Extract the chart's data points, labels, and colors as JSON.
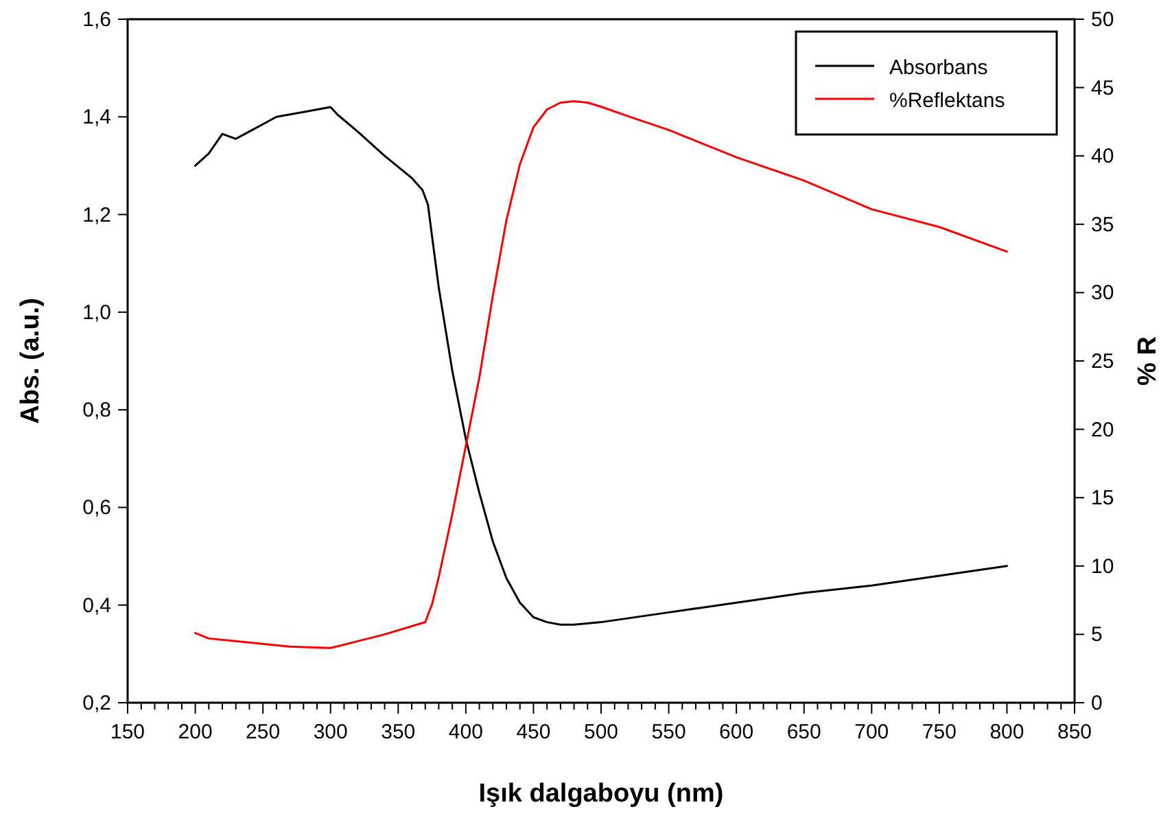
{
  "chart_data": {
    "type": "line",
    "xlabel": "Işık dalgaboyu (nm)",
    "ylabel": "Abs. (a.u.)",
    "y2label": "% R",
    "xlim": [
      150,
      850
    ],
    "xticks": [
      150,
      {
        "value": 160,
        "label": null
      },
      {
        "value": 170,
        "label": null
      },
      {
        "value": 180,
        "label": null
      },
      {
        "value": 190,
        "label": null
      },
      200,
      {
        "value": 210,
        "label": null
      },
      {
        "value": 220,
        "label": null
      },
      {
        "value": 230,
        "label": null
      },
      {
        "value": 240,
        "label": null
      },
      250,
      {
        "value": 260,
        "label": null
      },
      {
        "value": 270,
        "label": null
      },
      {
        "value": 280,
        "label": null
      },
      {
        "value": 290,
        "label": null
      },
      300,
      {
        "value": 310,
        "label": null
      },
      {
        "value": 320,
        "label": null
      },
      {
        "value": 330,
        "label": null
      },
      {
        "value": 340,
        "label": null
      },
      350,
      {
        "value": 360,
        "label": null
      },
      {
        "value": 370,
        "label": null
      },
      {
        "value": 380,
        "label": null
      },
      {
        "value": 390,
        "label": null
      },
      400,
      {
        "value": 410,
        "label": null
      },
      {
        "value": 420,
        "label": null
      },
      {
        "value": 430,
        "label": null
      },
      {
        "value": 440,
        "label": null
      },
      450,
      {
        "value": 460,
        "label": null
      },
      {
        "value": 470,
        "label": null
      },
      {
        "value": 480,
        "label": null
      },
      {
        "value": 490,
        "label": null
      },
      500,
      {
        "value": 510,
        "label": null
      },
      {
        "value": 520,
        "label": null
      },
      {
        "value": 530,
        "label": null
      },
      {
        "value": 540,
        "label": null
      },
      550,
      {
        "value": 560,
        "label": null
      },
      {
        "value": 570,
        "label": null
      },
      {
        "value": 580,
        "label": null
      },
      {
        "value": 590,
        "label": null
      },
      600,
      {
        "value": 610,
        "label": null
      },
      {
        "value": 620,
        "label": null
      },
      {
        "value": 630,
        "label": null
      },
      {
        "value": 640,
        "label": null
      },
      650,
      {
        "value": 660,
        "label": null
      },
      {
        "value": 670,
        "label": null
      },
      {
        "value": 680,
        "label": null
      },
      {
        "value": 690,
        "label": null
      },
      700,
      {
        "value": 710,
        "label": null
      },
      {
        "value": 720,
        "label": null
      },
      {
        "value": 730,
        "label": null
      },
      {
        "value": 740,
        "label": null
      },
      750,
      {
        "value": 760,
        "label": null
      },
      {
        "value": 770,
        "label": null
      },
      {
        "value": 780,
        "label": null
      },
      {
        "value": 790,
        "label": null
      },
      800,
      {
        "value": 810,
        "label": null
      },
      {
        "value": 820,
        "label": null
      },
      {
        "value": 830,
        "label": null
      },
      {
        "value": 840,
        "label": null
      },
      850
    ],
    "ylim": [
      0.2,
      1.6
    ],
    "yticks": [
      {
        "value": 0.2,
        "label": "0,2"
      },
      {
        "value": 0.4,
        "label": "0,4"
      },
      {
        "value": 0.6,
        "label": "0,6"
      },
      {
        "value": 0.8,
        "label": "0,8"
      },
      {
        "value": 1.0,
        "label": "1,0"
      },
      {
        "value": 1.2,
        "label": "1,2"
      },
      {
        "value": 1.4,
        "label": "1,4"
      },
      {
        "value": 1.6,
        "label": "1,6"
      }
    ],
    "y2lim": [
      0,
      50
    ],
    "y2ticks": [
      0,
      5,
      10,
      15,
      20,
      25,
      30,
      35,
      40,
      45,
      50
    ],
    "grid": false,
    "legend": "top right",
    "marker": "none",
    "line_style": "solid",
    "series": [
      {
        "name": "Absorbans",
        "color": "#000000",
        "x": [
          200,
          210,
          220,
          230,
          240,
          250,
          260,
          280,
          300,
          305,
          320,
          340,
          360,
          368,
          372,
          380,
          390,
          400,
          410,
          420,
          430,
          440,
          450,
          460,
          470,
          480,
          500,
          550,
          600,
          650,
          700,
          750,
          800
        ],
        "values": [
          1.3,
          1.325,
          1.365,
          1.355,
          1.37,
          1.385,
          1.4,
          1.41,
          1.42,
          1.405,
          1.37,
          1.32,
          1.275,
          1.25,
          1.22,
          1.05,
          0.88,
          0.74,
          0.63,
          0.53,
          0.455,
          0.405,
          0.375,
          0.365,
          0.36,
          0.36,
          0.365,
          0.385,
          0.405,
          0.425,
          0.44,
          0.46,
          0.48
        ]
      },
      {
        "name": "%Reflektans",
        "color": "#ff0000",
        "axis": "y2",
        "x": [
          200,
          210,
          230,
          250,
          270,
          300,
          320,
          340,
          360,
          370,
          375,
          380,
          390,
          400,
          410,
          420,
          430,
          440,
          450,
          460,
          470,
          480,
          490,
          500,
          520,
          550,
          600,
          650,
          700,
          750,
          800
        ],
        "values": [
          5.1,
          4.7,
          4.5,
          4.3,
          4.1,
          4.0,
          4.5,
          5.0,
          5.6,
          5.9,
          7.2,
          9.2,
          13.8,
          18.8,
          23.8,
          29.8,
          35.3,
          39.4,
          42.1,
          43.4,
          43.9,
          44.0,
          43.9,
          43.6,
          42.9,
          41.9,
          39.9,
          38.2,
          36.1,
          34.8,
          33.0
        ]
      }
    ]
  }
}
